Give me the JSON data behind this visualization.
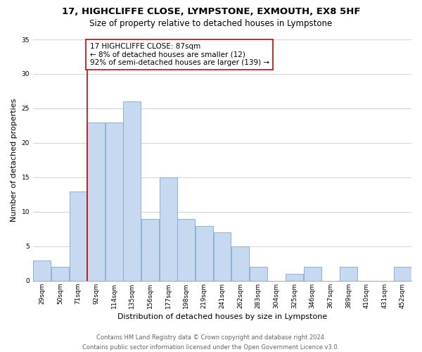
{
  "title1": "17, HIGHCLIFFE CLOSE, LYMPSTONE, EXMOUTH, EX8 5HF",
  "title2": "Size of property relative to detached houses in Lympstone",
  "xlabel": "Distribution of detached houses by size in Lympstone",
  "ylabel": "Number of detached properties",
  "categories": [
    "29sqm",
    "50sqm",
    "71sqm",
    "92sqm",
    "114sqm",
    "135sqm",
    "156sqm",
    "177sqm",
    "198sqm",
    "219sqm",
    "241sqm",
    "262sqm",
    "283sqm",
    "304sqm",
    "325sqm",
    "346sqm",
    "367sqm",
    "389sqm",
    "410sqm",
    "431sqm",
    "452sqm"
  ],
  "values": [
    3,
    2,
    13,
    23,
    23,
    26,
    9,
    15,
    9,
    8,
    7,
    5,
    2,
    0,
    1,
    2,
    0,
    2,
    0,
    0,
    2
  ],
  "bar_color": "#c6d9f0",
  "bar_edge_color": "#7faacc",
  "vline_x_index": 3,
  "vline_color": "#cc0000",
  "ylim": [
    0,
    35
  ],
  "yticks": [
    0,
    5,
    10,
    15,
    20,
    25,
    30,
    35
  ],
  "annotation_text": "17 HIGHCLIFFE CLOSE: 87sqm\n← 8% of detached houses are smaller (12)\n92% of semi-detached houses are larger (139) →",
  "annotation_box_color": "#ffffff",
  "annotation_box_edgecolor": "#cc0000",
  "footer1": "Contains HM Land Registry data © Crown copyright and database right 2024.",
  "footer2": "Contains public sector information licensed under the Open Government Licence v3.0.",
  "background_color": "#ffffff",
  "grid_color": "#cccccc",
  "title_fontsize": 9.5,
  "subtitle_fontsize": 8.5,
  "axis_label_fontsize": 8,
  "tick_fontsize": 6.5,
  "annotation_fontsize": 7.5,
  "footer_fontsize": 6
}
